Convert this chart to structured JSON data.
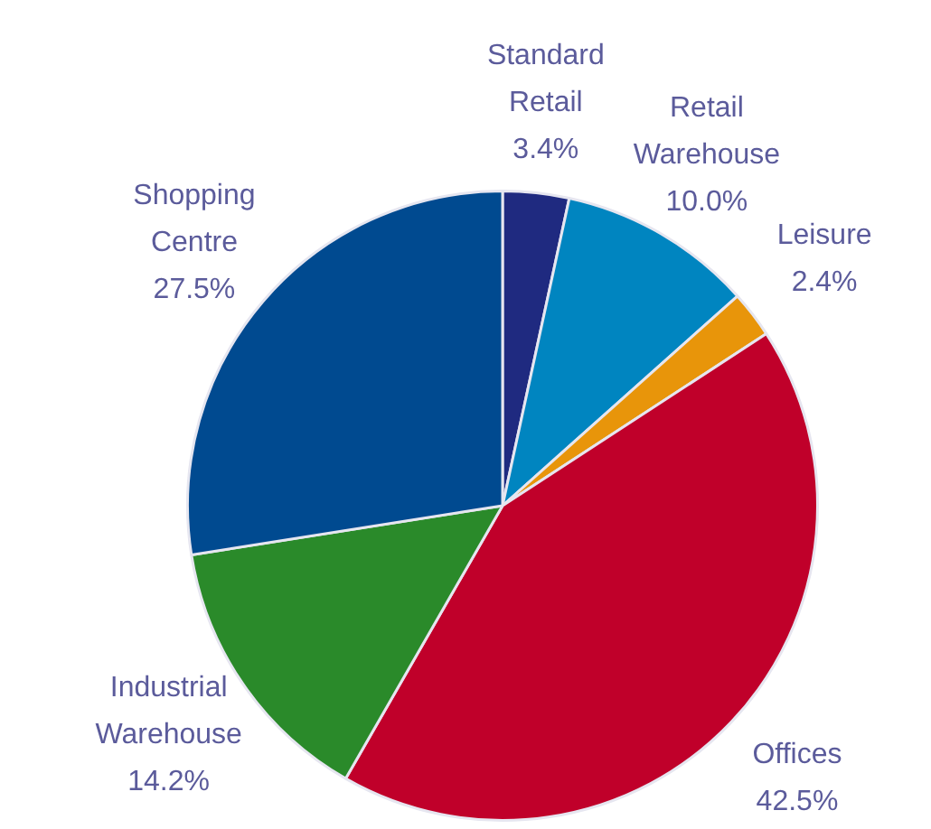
{
  "chart_data": {
    "type": "pie",
    "categories": [
      "Standard Retail",
      "Retail Warehouse",
      "Leisure",
      "Offices",
      "Industrial Warehouse",
      "Shopping Centre"
    ],
    "values": [
      3.4,
      10.0,
      2.4,
      42.5,
      14.2,
      27.5
    ],
    "colors": [
      "#1f2a80",
      "#0085c0",
      "#e8950a",
      "#c0002a",
      "#2a8a2a",
      "#004a90"
    ],
    "value_labels": [
      "3.4%",
      "10.0%",
      "2.4%",
      "42.5%",
      "14.2%",
      "27.5%"
    ],
    "legend": false
  }
}
